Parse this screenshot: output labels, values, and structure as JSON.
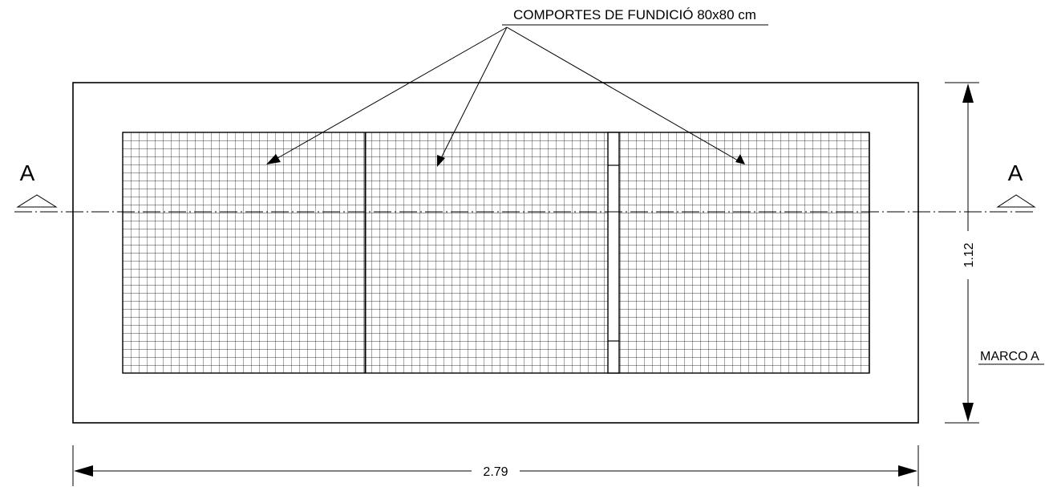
{
  "drawing": {
    "callout_label": "COMPORTES DE FUNDICIÓ 80x80 cm",
    "section_left": "A",
    "section_right": "A",
    "dim_width": "2.79",
    "dim_height": "1.12",
    "frame_label": "MARCO A"
  },
  "colors": {
    "line": "#000000",
    "background": "#ffffff"
  }
}
